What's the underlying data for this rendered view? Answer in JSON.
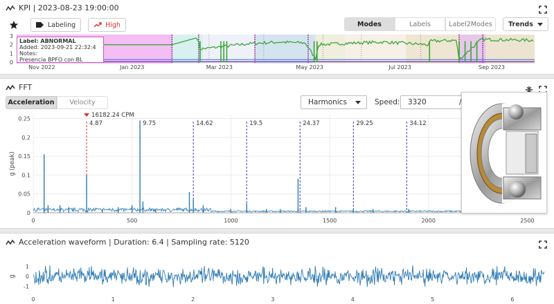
{
  "kpi": {
    "title": "KPI | 2023-08-23 19:00:00",
    "labeling_button": "Labeling",
    "high_button": "High",
    "view_tabs": [
      "Modes",
      "Labels",
      "Label2Modes"
    ],
    "active_view": "Modes",
    "trends_button": "Trends",
    "y_ticks": [
      "3",
      "2",
      "1",
      "0"
    ],
    "x_ticks": [
      "Nov 2022",
      "Jan 2023",
      "Mar 2023",
      "May 2023",
      "Jul 2023",
      "Sep 2023"
    ],
    "tooltip": {
      "label": "Label: ABNORMAL",
      "added": "Added: 2023-09-21 22:32:4",
      "notes": "Notes:",
      "note_text": "Presencia BPFO con BL"
    },
    "colors": {
      "trend": "#3aa53a",
      "abnormal_band": "#f2b8f2",
      "accent_red": "#e03030"
    }
  },
  "fft": {
    "title": "FFT",
    "tabs": [
      "Acceleration",
      "Velocity"
    ],
    "active_tab": "Acceleration",
    "harmonics_select": "Harmonics",
    "speed_label": "Speed:",
    "speed_value": "3320",
    "speed_unit": "/",
    "marker_label": "16182.24 CPM",
    "harmonic_labels": [
      "4.87",
      "9.75",
      "14.62",
      "19.5",
      "24.37",
      "29.25",
      "34.12"
    ],
    "image_alt": "bearing-image"
  },
  "wave": {
    "title": "Acceleration waveform | Duration: 6.4 | Sampling rate: 5120"
  },
  "chart_data": [
    {
      "type": "line",
      "chart": "kpi-trend",
      "x_range": [
        "2022-10-15",
        "2023-09-30"
      ],
      "ylim": [
        0,
        3
      ],
      "yticks": [
        0,
        1,
        2,
        3
      ],
      "xticks": [
        "Nov 2022",
        "Jan 2023",
        "Mar 2023",
        "May 2023",
        "Jul 2023",
        "Sep 2023"
      ],
      "series": [
        {
          "x": [
            "2022-10-15",
            "2023-01-28",
            "2023-02-14",
            "2023-02-16",
            "2023-03-20",
            "2023-04-10",
            "2023-04-28",
            "2023-05-05",
            "2023-05-07",
            "2023-06-01",
            "2023-06-20",
            "2023-07-20",
            "2023-07-22",
            "2023-08-08",
            "2023-08-10",
            "2023-08-25",
            "2023-09-30"
          ],
          "y": [
            2.0,
            2.0,
            2.8,
            1.5,
            2.1,
            2.3,
            2.2,
            0.4,
            2.0,
            2.2,
            2.3,
            2.0,
            2.4,
            2.5,
            0.3,
            2.6,
            2.5
          ]
        }
      ]
    },
    {
      "type": "bar",
      "chart": "fft-spectrum",
      "xlabel": "",
      "ylabel": "g (peak)",
      "xlim": [
        0,
        2600
      ],
      "ylim": [
        0,
        0.26
      ],
      "xticks": [
        0,
        500,
        1000,
        1500,
        2000,
        2500
      ],
      "yticks": [
        0,
        0.05,
        0.1,
        0.15,
        0.2,
        0.25
      ],
      "peaks": [
        {
          "x": 55,
          "y": 0.155
        },
        {
          "x": 75,
          "y": 0.02
        },
        {
          "x": 135,
          "y": 0.02
        },
        {
          "x": 180,
          "y": 0.015
        },
        {
          "x": 270,
          "y": 0.1
        },
        {
          "x": 350,
          "y": 0.01
        },
        {
          "x": 430,
          "y": 0.015
        },
        {
          "x": 500,
          "y": 0.02
        },
        {
          "x": 540,
          "y": 0.245
        },
        {
          "x": 555,
          "y": 0.03
        },
        {
          "x": 620,
          "y": 0.01
        },
        {
          "x": 790,
          "y": 0.055
        },
        {
          "x": 810,
          "y": 0.035
        },
        {
          "x": 860,
          "y": 0.02
        },
        {
          "x": 1000,
          "y": 0.01
        },
        {
          "x": 1080,
          "y": 0.025
        },
        {
          "x": 1180,
          "y": 0.01
        },
        {
          "x": 1250,
          "y": 0.01
        },
        {
          "x": 1340,
          "y": 0.09
        },
        {
          "x": 1380,
          "y": 0.015
        },
        {
          "x": 1530,
          "y": 0.015
        },
        {
          "x": 1620,
          "y": 0.01
        },
        {
          "x": 1720,
          "y": 0.01
        },
        {
          "x": 1900,
          "y": 0.01
        },
        {
          "x": 2230,
          "y": 0.012
        }
      ],
      "harmonic_x": [
        270,
        540,
        810,
        1080,
        1350,
        1620,
        1890
      ],
      "marker_x": 270
    },
    {
      "type": "line",
      "chart": "acceleration-waveform",
      "ylabel": "g",
      "xlim": [
        0,
        6.4
      ],
      "ylim": [
        -1.5,
        1.5
      ],
      "xticks": [
        0,
        1,
        2,
        3,
        4,
        5,
        6
      ],
      "yticks": [
        -1,
        0,
        1
      ],
      "amplitude_peak": 1.4
    }
  ]
}
